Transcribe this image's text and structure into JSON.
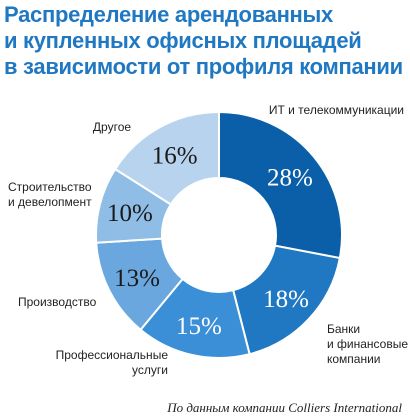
{
  "title_lines": [
    "Распределение арендованных",
    "и купленных офисных площадей",
    "в зависимости от профиля компании"
  ],
  "source": "По данным компании Colliers International",
  "colors": {
    "title": "#1f78c1",
    "slices": [
      "#0a5fa8",
      "#1f78c1",
      "#3a8fd6",
      "#6aa7df",
      "#90bde6",
      "#b8d3ee"
    ],
    "value_text_dark": "#1a1a1a",
    "value_text_light": "#ffffff"
  },
  "chart_data": {
    "type": "pie",
    "donut": true,
    "unit": "%",
    "categories": [
      "ИТ и телекоммуникации",
      "Банки и финансовые компании",
      "Профессиональные услуги",
      "Производство",
      "Строительство и девелопмент",
      "Другое"
    ],
    "values": [
      28,
      18,
      15,
      13,
      10,
      16
    ],
    "value_labels": [
      "28%",
      "18%",
      "15%",
      "13%",
      "10%",
      "16%"
    ],
    "category_label_lines": [
      [
        "ИТ и телекоммуникации"
      ],
      [
        "Банки",
        "и финансовые",
        "компании"
      ],
      [
        "Профессиональные",
        "услуги"
      ],
      [
        "Производство"
      ],
      [
        "Строительство",
        "и девелопмент"
      ],
      [
        "Другое"
      ]
    ]
  }
}
